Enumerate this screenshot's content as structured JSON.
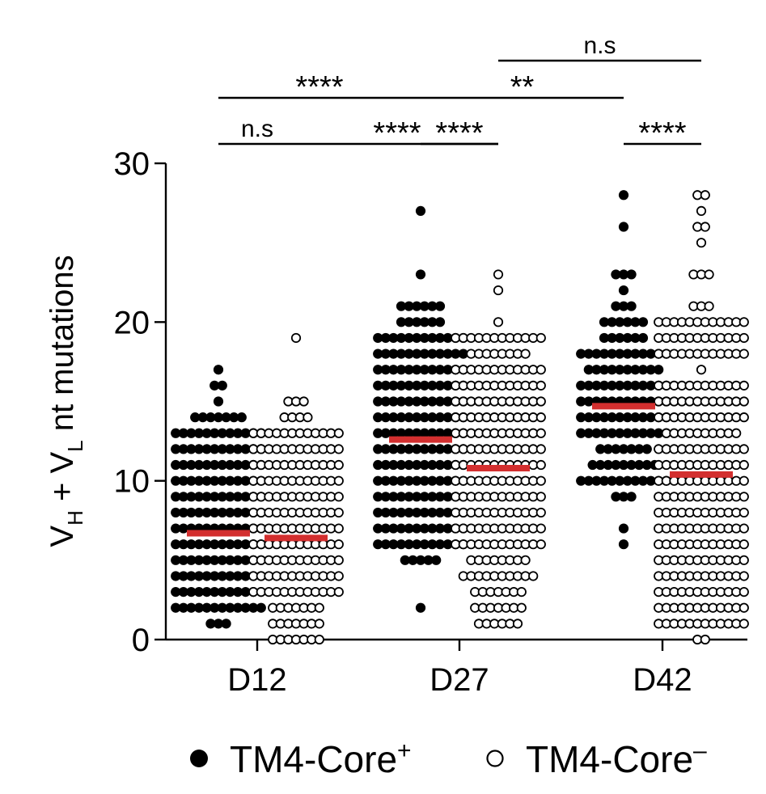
{
  "chart_data": {
    "type": "scatter",
    "ylabel": {
      "parts": [
        {
          "text": "V",
          "sub": false
        },
        {
          "text": "H",
          "sub": true
        },
        {
          "text": " + V",
          "sub": false
        },
        {
          "text": "L",
          "sub": true
        },
        {
          "text": " nt mutations",
          "sub": false
        }
      ]
    },
    "ylim": [
      0,
      30
    ],
    "yticks": [
      "0",
      "10",
      "20",
      "30"
    ],
    "categories": [
      "D12",
      "D27",
      "D42"
    ],
    "series": [
      {
        "name": "TM4-Core",
        "superscript": "+",
        "marker": "filled",
        "color": "#000000",
        "medians": [
          6.7,
          12.6,
          14.7
        ],
        "points": [
          [
            {
              "y": 1,
              "n": 3
            },
            {
              "y": 2,
              "n": 12
            },
            {
              "y": 3,
              "n": 12
            },
            {
              "y": 4,
              "n": 12
            },
            {
              "y": 5,
              "n": 12
            },
            {
              "y": 6,
              "n": 12
            },
            {
              "y": 7,
              "n": 12
            },
            {
              "y": 8,
              "n": 12
            },
            {
              "y": 9,
              "n": 12
            },
            {
              "y": 10,
              "n": 12
            },
            {
              "y": 11,
              "n": 12
            },
            {
              "y": 12,
              "n": 12
            },
            {
              "y": 13,
              "n": 12
            },
            {
              "y": 14,
              "n": 7
            },
            {
              "y": 15,
              "n": 1
            },
            {
              "y": 16,
              "n": 2
            },
            {
              "y": 17,
              "n": 1
            }
          ],
          [
            {
              "y": 2,
              "n": 1
            },
            {
              "y": 5,
              "n": 5
            },
            {
              "y": 6,
              "n": 12
            },
            {
              "y": 7,
              "n": 12
            },
            {
              "y": 8,
              "n": 12
            },
            {
              "y": 9,
              "n": 12
            },
            {
              "y": 10,
              "n": 12
            },
            {
              "y": 11,
              "n": 12
            },
            {
              "y": 12,
              "n": 12
            },
            {
              "y": 13,
              "n": 12
            },
            {
              "y": 14,
              "n": 12
            },
            {
              "y": 15,
              "n": 12
            },
            {
              "y": 16,
              "n": 12
            },
            {
              "y": 17,
              "n": 12
            },
            {
              "y": 18,
              "n": 12
            },
            {
              "y": 19,
              "n": 12
            },
            {
              "y": 20,
              "n": 6
            },
            {
              "y": 21,
              "n": 6
            },
            {
              "y": 23,
              "n": 1
            },
            {
              "y": 27,
              "n": 1
            }
          ],
          [
            {
              "y": 6,
              "n": 1
            },
            {
              "y": 7,
              "n": 1
            },
            {
              "y": 9,
              "n": 3
            },
            {
              "y": 10,
              "n": 12
            },
            {
              "y": 11,
              "n": 9
            },
            {
              "y": 12,
              "n": 7
            },
            {
              "y": 13,
              "n": 12
            },
            {
              "y": 14,
              "n": 12
            },
            {
              "y": 15,
              "n": 12
            },
            {
              "y": 16,
              "n": 12
            },
            {
              "y": 17,
              "n": 10
            },
            {
              "y": 18,
              "n": 12
            },
            {
              "y": 19,
              "n": 6
            },
            {
              "y": 20,
              "n": 6
            },
            {
              "y": 21,
              "n": 3
            },
            {
              "y": 22,
              "n": 1
            },
            {
              "y": 23,
              "n": 3
            },
            {
              "y": 26,
              "n": 1
            },
            {
              "y": 28,
              "n": 1
            }
          ]
        ]
      },
      {
        "name": "TM4-Core",
        "superscript": "–",
        "marker": "open",
        "color": "#000000",
        "medians": [
          6.4,
          10.8,
          10.4
        ],
        "points": [
          [
            {
              "y": 0,
              "n": 7
            },
            {
              "y": 1,
              "n": 7
            },
            {
              "y": 2,
              "n": 7
            },
            {
              "y": 3,
              "n": 12
            },
            {
              "y": 4,
              "n": 12
            },
            {
              "y": 5,
              "n": 12
            },
            {
              "y": 6,
              "n": 12
            },
            {
              "y": 7,
              "n": 12
            },
            {
              "y": 8,
              "n": 12
            },
            {
              "y": 9,
              "n": 12
            },
            {
              "y": 10,
              "n": 12
            },
            {
              "y": 11,
              "n": 12
            },
            {
              "y": 12,
              "n": 12
            },
            {
              "y": 13,
              "n": 12
            },
            {
              "y": 14,
              "n": 4
            },
            {
              "y": 15,
              "n": 3
            },
            {
              "y": 19,
              "n": 1
            }
          ],
          [
            {
              "y": 1,
              "n": 6
            },
            {
              "y": 2,
              "n": 7
            },
            {
              "y": 3,
              "n": 7
            },
            {
              "y": 4,
              "n": 10
            },
            {
              "y": 5,
              "n": 8
            },
            {
              "y": 6,
              "n": 12
            },
            {
              "y": 7,
              "n": 12
            },
            {
              "y": 8,
              "n": 12
            },
            {
              "y": 9,
              "n": 12
            },
            {
              "y": 10,
              "n": 12
            },
            {
              "y": 11,
              "n": 12
            },
            {
              "y": 12,
              "n": 12
            },
            {
              "y": 13,
              "n": 12
            },
            {
              "y": 14,
              "n": 12
            },
            {
              "y": 15,
              "n": 12
            },
            {
              "y": 16,
              "n": 12
            },
            {
              "y": 17,
              "n": 12
            },
            {
              "y": 18,
              "n": 8
            },
            {
              "y": 19,
              "n": 12
            },
            {
              "y": 20,
              "n": 1
            },
            {
              "y": 22,
              "n": 1
            },
            {
              "y": 23,
              "n": 1
            }
          ],
          [
            {
              "y": 0,
              "n": 2
            },
            {
              "y": 1,
              "n": 12
            },
            {
              "y": 2,
              "n": 12
            },
            {
              "y": 3,
              "n": 12
            },
            {
              "y": 4,
              "n": 12
            },
            {
              "y": 5,
              "n": 12
            },
            {
              "y": 6,
              "n": 12
            },
            {
              "y": 7,
              "n": 12
            },
            {
              "y": 8,
              "n": 12
            },
            {
              "y": 9,
              "n": 12
            },
            {
              "y": 10,
              "n": 12
            },
            {
              "y": 11,
              "n": 12
            },
            {
              "y": 12,
              "n": 12
            },
            {
              "y": 13,
              "n": 10
            },
            {
              "y": 14,
              "n": 12
            },
            {
              "y": 15,
              "n": 12
            },
            {
              "y": 16,
              "n": 12
            },
            {
              "y": 17,
              "n": 1
            },
            {
              "y": 18,
              "n": 12
            },
            {
              "y": 19,
              "n": 12
            },
            {
              "y": 20,
              "n": 12
            },
            {
              "y": 21,
              "n": 3
            },
            {
              "y": 23,
              "n": 3
            },
            {
              "y": 25,
              "n": 1
            },
            {
              "y": 26,
              "n": 2
            },
            {
              "y": 27,
              "n": 1
            },
            {
              "y": 28,
              "n": 2
            }
          ]
        ]
      }
    ],
    "median_color": "#d32f2f",
    "significance": [
      {
        "from": [
          0,
          0
        ],
        "to": [
          0,
          1
        ],
        "label": "n.s"
      },
      {
        "from": [
          0,
          0
        ],
        "to": [
          1,
          0
        ],
        "label": "****"
      },
      {
        "from": [
          0,
          1
        ],
        "to": [
          1,
          1
        ],
        "label": "****"
      },
      {
        "from": [
          1,
          1
        ],
        "to": [
          2,
          1
        ],
        "label": "n.s"
      },
      {
        "from": [
          1,
          0
        ],
        "to": [
          2,
          0
        ],
        "label": "**"
      },
      {
        "from": [
          1,
          0
        ],
        "to": [
          1,
          1
        ],
        "label": "****"
      },
      {
        "from": [
          2,
          0
        ],
        "to": [
          2,
          1
        ],
        "label": "****"
      }
    ],
    "legend": {
      "placement": "bottom",
      "items": [
        {
          "label": "TM4-Core",
          "superscript": "+",
          "marker": "filled"
        },
        {
          "label": "TM4-Core",
          "superscript": "–",
          "marker": "open"
        }
      ]
    }
  }
}
